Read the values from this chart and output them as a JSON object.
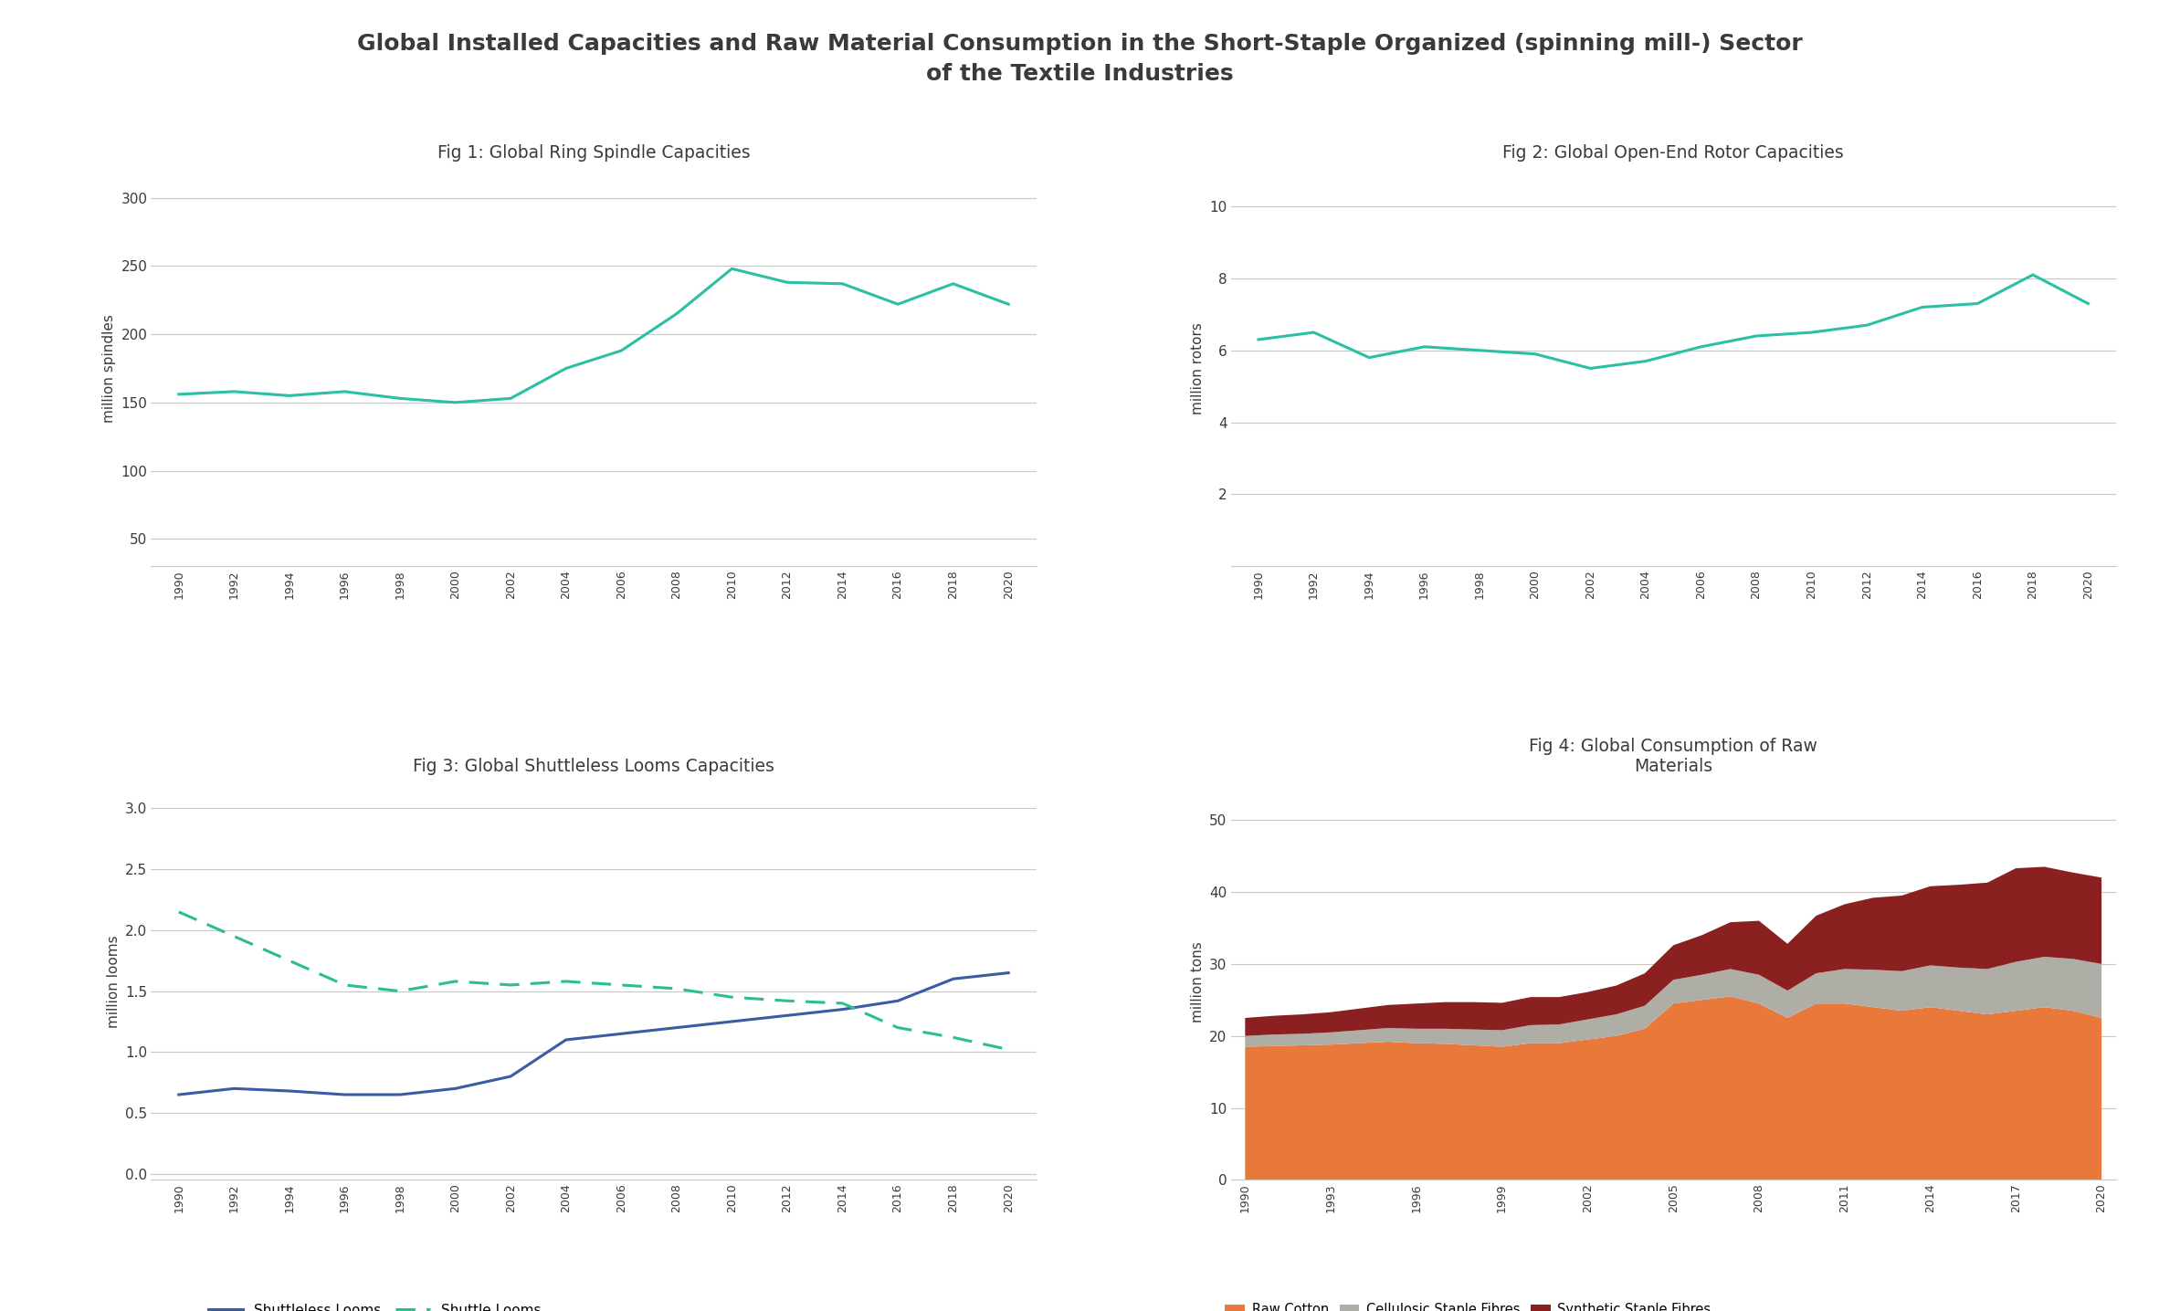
{
  "title": "Global Installed Capacities and Raw Material Consumption in the Short-Staple Organized (spinning mill-) Sector\nof the Textile Industries",
  "title_fontsize": 18,
  "teal_color": "#2BBFA4",
  "blue_color": "#3B5BA5",
  "dashed_green": "#2BBF8A",
  "fig1_title": "Fig 1: Global Ring Spindle Capacities",
  "fig1_ylabel": "million spindles",
  "fig1_years": [
    1990,
    1992,
    1994,
    1996,
    1998,
    2000,
    2002,
    2004,
    2006,
    2008,
    2010,
    2012,
    2014,
    2016,
    2018,
    2020
  ],
  "fig1_values": [
    156,
    158,
    155,
    158,
    153,
    150,
    153,
    175,
    188,
    215,
    248,
    238,
    237,
    222,
    237,
    222
  ],
  "fig1_yticks": [
    50,
    100,
    150,
    200,
    250,
    300
  ],
  "fig1_ylim": [
    30,
    320
  ],
  "fig2_title": "Fig 2: Global Open-End Rotor Capacities",
  "fig2_ylabel": "million rotors",
  "fig2_years": [
    1990,
    1992,
    1994,
    1996,
    1998,
    2000,
    2002,
    2004,
    2006,
    2008,
    2010,
    2012,
    2014,
    2016,
    2018,
    2020
  ],
  "fig2_values": [
    6.3,
    6.5,
    5.8,
    6.1,
    6.0,
    5.9,
    5.5,
    5.7,
    6.1,
    6.4,
    6.5,
    6.7,
    7.2,
    7.3,
    8.1,
    7.3
  ],
  "fig2_yticks": [
    2,
    4,
    6,
    8,
    10
  ],
  "fig2_ylim": [
    0,
    11
  ],
  "fig3_title": "Fig 3: Global Shuttleless Looms Capacities",
  "fig3_ylabel": "million looms",
  "fig3_years": [
    1990,
    1992,
    1994,
    1996,
    1998,
    2000,
    2002,
    2004,
    2006,
    2008,
    2010,
    2012,
    2014,
    2016,
    2018,
    2020
  ],
  "fig3_shuttleless": [
    0.65,
    0.7,
    0.68,
    0.65,
    0.65,
    0.7,
    0.8,
    1.1,
    1.15,
    1.2,
    1.25,
    1.3,
    1.35,
    1.42,
    1.6,
    1.65
  ],
  "fig3_shuttle": [
    2.15,
    1.95,
    1.75,
    1.55,
    1.5,
    1.58,
    1.55,
    1.58,
    1.55,
    1.52,
    1.45,
    1.42,
    1.4,
    1.2,
    1.12,
    1.02
  ],
  "fig3_yticks": [
    0.0,
    0.5,
    1.0,
    1.5,
    2.0,
    2.5,
    3.0
  ],
  "fig3_ylim": [
    -0.05,
    3.2
  ],
  "fig4_title": "Fig 4: Global Consumption of Raw\nMaterials",
  "fig4_ylabel": "million tons",
  "fig4_years_labels": [
    1990,
    1993,
    1996,
    1999,
    2002,
    2005,
    2008,
    2011,
    2014,
    2017,
    2020
  ],
  "fig4_years_full": [
    1990,
    1991,
    1992,
    1993,
    1994,
    1995,
    1996,
    1997,
    1998,
    1999,
    2000,
    2001,
    2002,
    2003,
    2004,
    2005,
    2006,
    2007,
    2008,
    2009,
    2010,
    2011,
    2012,
    2013,
    2014,
    2015,
    2016,
    2017,
    2018,
    2019,
    2020
  ],
  "fig4_cotton": [
    18.5,
    18.6,
    18.7,
    18.8,
    19.0,
    19.2,
    19.0,
    18.9,
    18.7,
    18.5,
    19.0,
    19.0,
    19.5,
    20.0,
    21.0,
    24.5,
    25.0,
    25.5,
    24.5,
    22.5,
    24.5,
    24.5,
    24.0,
    23.5,
    24.0,
    23.5,
    23.0,
    23.5,
    24.0,
    23.5,
    22.5
  ],
  "fig4_cellulosic": [
    1.5,
    1.6,
    1.6,
    1.7,
    1.8,
    1.9,
    2.0,
    2.1,
    2.2,
    2.3,
    2.5,
    2.6,
    2.8,
    3.0,
    3.2,
    3.3,
    3.5,
    3.8,
    4.0,
    3.8,
    4.2,
    4.8,
    5.2,
    5.5,
    5.8,
    6.0,
    6.3,
    6.8,
    7.0,
    7.2,
    7.5
  ],
  "fig4_synthetic": [
    2.5,
    2.6,
    2.7,
    2.8,
    3.0,
    3.2,
    3.5,
    3.7,
    3.8,
    3.8,
    3.9,
    3.8,
    3.8,
    4.0,
    4.5,
    4.8,
    5.5,
    6.5,
    7.5,
    6.5,
    8.0,
    9.0,
    10.0,
    10.5,
    11.0,
    11.5,
    12.0,
    13.0,
    12.5,
    12.0,
    12.0
  ],
  "fig4_yticks": [
    0,
    10,
    20,
    30,
    40,
    50
  ],
  "fig4_ylim": [
    0,
    55
  ],
  "cotton_color": "#E8793A",
  "cellulosic_color": "#AEADA6",
  "synthetic_color": "#8B2020",
  "legend3_shuttleless": "Shuttleless Looms",
  "legend3_shuttle": "Shuttle Looms",
  "legend4_cotton": "Raw Cotton",
  "legend4_cellulosic": "Cellulosic Staple Fibres",
  "legend4_synthetic": "Synthetic Staple Fibres",
  "bg_color": "#FFFFFF",
  "panel_bg": "#F5F5F5",
  "grid_color": "#C8C8C8",
  "text_color": "#3A3A3A"
}
